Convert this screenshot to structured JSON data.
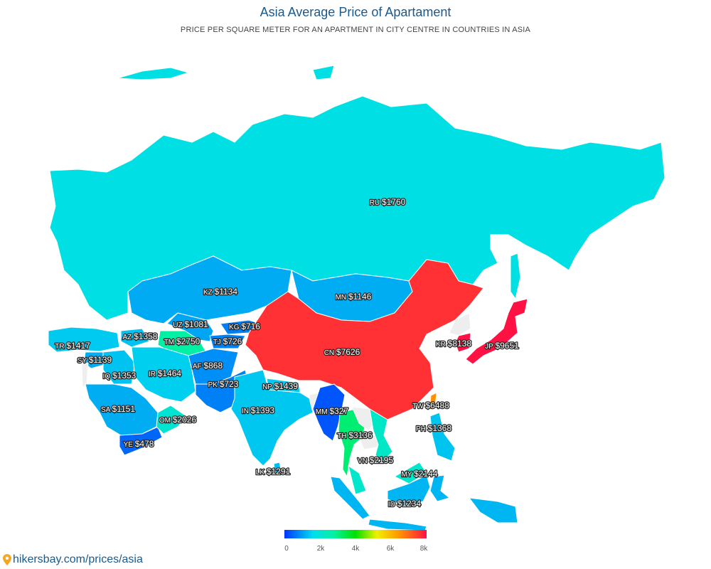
{
  "title": "Asia Average Price of Apartament",
  "subtitle": "PRICE PER SQUARE METER FOR AN APARTMENT IN CITY CENTRE IN COUNTRIES IN ASIA",
  "legend": {
    "ticks": [
      "0",
      "2k",
      "4k",
      "6k",
      "8k"
    ]
  },
  "footer": {
    "text": "hikersbay.com/prices/asia"
  },
  "colors": {
    "low": "#0033ff",
    "cyan": "#00ddee",
    "teal": "#00f2a0",
    "green": "#00e000",
    "yellow": "#f0f000",
    "orange": "#ff9900",
    "high": "#ff1144",
    "land_none": "#eeeeee",
    "border": "#ffffff"
  },
  "countries": [
    {
      "code": "RU",
      "value": 1760,
      "label": "$1760"
    },
    {
      "code": "KZ",
      "value": 1134,
      "label": "$1134"
    },
    {
      "code": "MN",
      "value": 1146,
      "label": "$1146"
    },
    {
      "code": "UZ",
      "value": 1081,
      "label": "$1081"
    },
    {
      "code": "KG",
      "value": 716,
      "label": "$716"
    },
    {
      "code": "TR",
      "value": 1417,
      "label": "$1417"
    },
    {
      "code": "AZ",
      "value": 1358,
      "label": "$1358"
    },
    {
      "code": "TM",
      "value": 2750,
      "label": "$2750"
    },
    {
      "code": "TJ",
      "value": 726,
      "label": "$726"
    },
    {
      "code": "SY",
      "value": 1139,
      "label": "$1139"
    },
    {
      "code": "CN",
      "value": 7626,
      "label": "$7626"
    },
    {
      "code": "KR",
      "value": 8138,
      "label": "$8138"
    },
    {
      "code": "JP",
      "value": 9651,
      "label": "$9651"
    },
    {
      "code": "AF",
      "value": 868,
      "label": "$868"
    },
    {
      "code": "IQ",
      "value": 1353,
      "label": "$1353"
    },
    {
      "code": "IR",
      "value": 1464,
      "label": "$1464"
    },
    {
      "code": "PK",
      "value": 723,
      "label": "$723"
    },
    {
      "code": "NP",
      "value": 1439,
      "label": "$1439"
    },
    {
      "code": "TW",
      "value": 6488,
      "label": "$6488"
    },
    {
      "code": "SA",
      "value": 1151,
      "label": "$1151"
    },
    {
      "code": "IN",
      "value": 1393,
      "label": "$1393"
    },
    {
      "code": "MM",
      "value": 327,
      "label": "$327"
    },
    {
      "code": "OM",
      "value": 2026,
      "label": "$2026"
    },
    {
      "code": "TH",
      "value": 3136,
      "label": "$3136"
    },
    {
      "code": "PH",
      "value": 1368,
      "label": "$1368"
    },
    {
      "code": "YE",
      "value": 478,
      "label": "$478"
    },
    {
      "code": "VN",
      "value": 2195,
      "label": "$2195"
    },
    {
      "code": "LK",
      "value": 1291,
      "label": "$1291"
    },
    {
      "code": "MY",
      "value": 2144,
      "label": "$2144"
    },
    {
      "code": "ID",
      "value": 1234,
      "label": "$1234"
    }
  ]
}
